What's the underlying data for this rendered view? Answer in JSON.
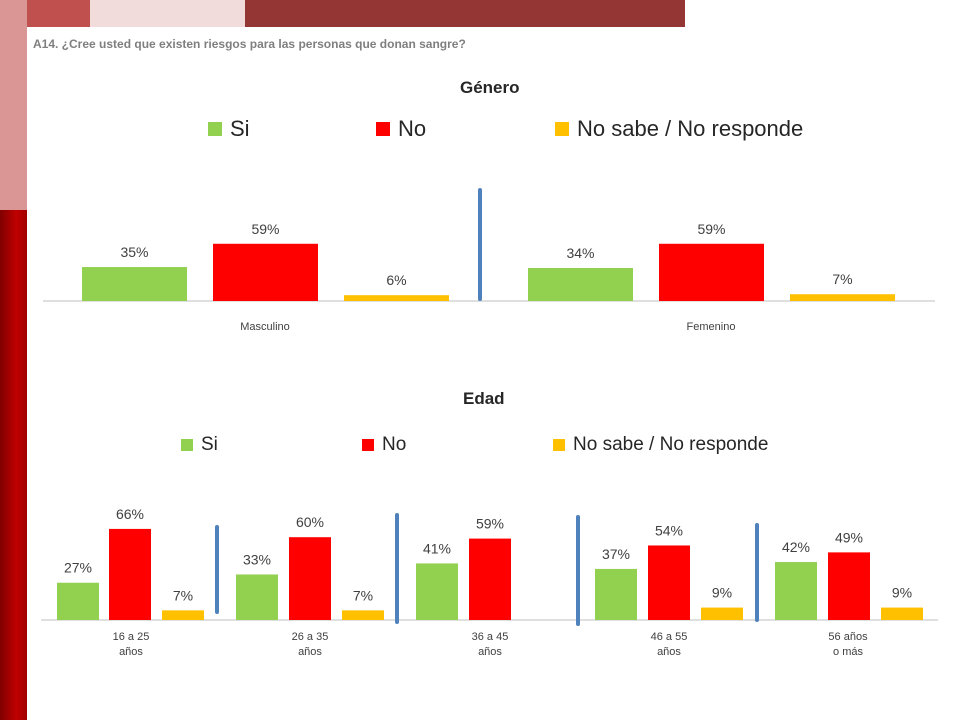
{
  "header": {
    "question": "A14. ¿Cree usted que existen riesgos para las personas que donan sangre?"
  },
  "colors": {
    "si": "#92d050",
    "no": "#ff0000",
    "nsnr": "#ffc000",
    "divider": "#4f81bd"
  },
  "legend": {
    "si": "Si",
    "no": "No",
    "nsnr": "No sabe / No responde"
  },
  "chart_data": [
    {
      "type": "bar",
      "title": "Género",
      "categories": [
        "Masculino",
        "Femenino"
      ],
      "series": [
        {
          "name": "Si",
          "values": [
            35,
            34
          ],
          "labels": [
            "35%",
            "34%"
          ]
        },
        {
          "name": "No",
          "values": [
            59,
            59
          ],
          "labels": [
            "59%",
            "59%"
          ]
        },
        {
          "name": "No sabe / No responde",
          "values": [
            6,
            7
          ],
          "labels": [
            "6%",
            "7%"
          ]
        }
      ],
      "unit": "%"
    },
    {
      "type": "bar",
      "title": "Edad",
      "categories": [
        [
          "16 a 25",
          "años"
        ],
        [
          "26 a 35",
          "años"
        ],
        [
          "36 a 45",
          "años"
        ],
        [
          "46 a 55",
          "años"
        ],
        [
          "56 años",
          "o más"
        ]
      ],
      "series": [
        {
          "name": "Si",
          "values": [
            27,
            33,
            41,
            37,
            42
          ],
          "labels": [
            "27%",
            "33%",
            "41%",
            "37%",
            "42%"
          ]
        },
        {
          "name": "No",
          "values": [
            66,
            60,
            59,
            54,
            49
          ],
          "labels": [
            "66%",
            "60%",
            "59%",
            "54%",
            "49%"
          ]
        },
        {
          "name": "No sabe / No responde",
          "values": [
            7,
            7,
            null,
            9,
            9
          ],
          "labels": [
            "7%",
            "7%",
            "",
            "9%",
            "9%"
          ]
        }
      ],
      "unit": "%"
    }
  ]
}
